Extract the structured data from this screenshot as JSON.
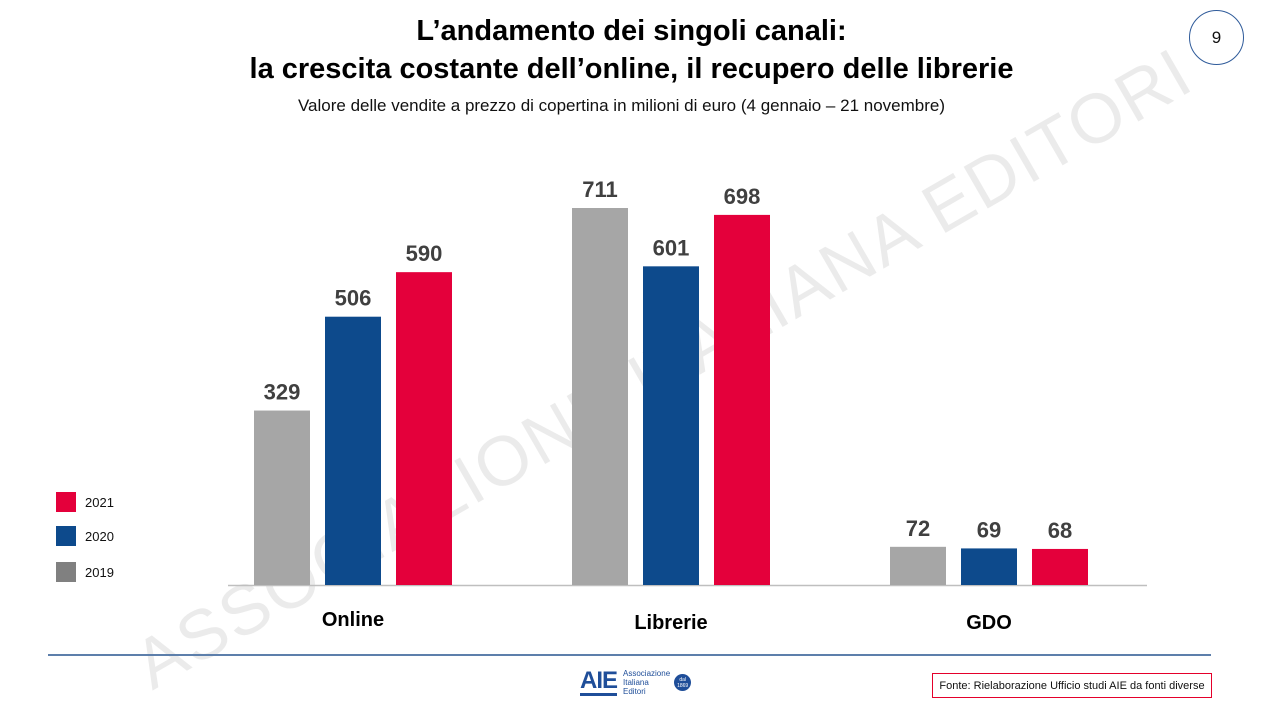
{
  "slide": {
    "title_line1": "L’andamento dei singoli canali:",
    "title_line2": "la crescita costante dell’online, il recupero delle librerie",
    "subtitle": "Valore delle vendite a prezzo di copertina in milioni di euro (4 gennaio – 21 novembre)",
    "page_number": "9",
    "watermark": "ASSOCIAZIONE ITALIANA EDITORI",
    "source_note": "Fonte: Rielaborazione Ufficio studi AIE da fonti diverse",
    "logo": {
      "mark": "AIE",
      "line1": "Associazione",
      "line2": "Italiana",
      "line3": "Editori",
      "badge_line1": "dal",
      "badge_line2": "1869"
    }
  },
  "chart_data": {
    "type": "bar",
    "categories": [
      "Online",
      "Librerie",
      "GDO"
    ],
    "series": [
      {
        "name": "2019",
        "values": [
          329,
          711,
          72
        ],
        "color": "#a6a6a6"
      },
      {
        "name": "2020",
        "values": [
          506,
          601,
          69
        ],
        "color": "#0d4a8c"
      },
      {
        "name": "2021",
        "values": [
          590,
          698,
          68
        ],
        "color": "#e4003b"
      }
    ],
    "ylim": [
      0,
      711
    ],
    "grid": false,
    "data_labels": true,
    "legend_position": "left",
    "legend": [
      {
        "label": "2021",
        "color": "#e4003b"
      },
      {
        "label": "2020",
        "color": "#0d4a8c"
      },
      {
        "label": "2019",
        "color": "#808080"
      }
    ]
  }
}
